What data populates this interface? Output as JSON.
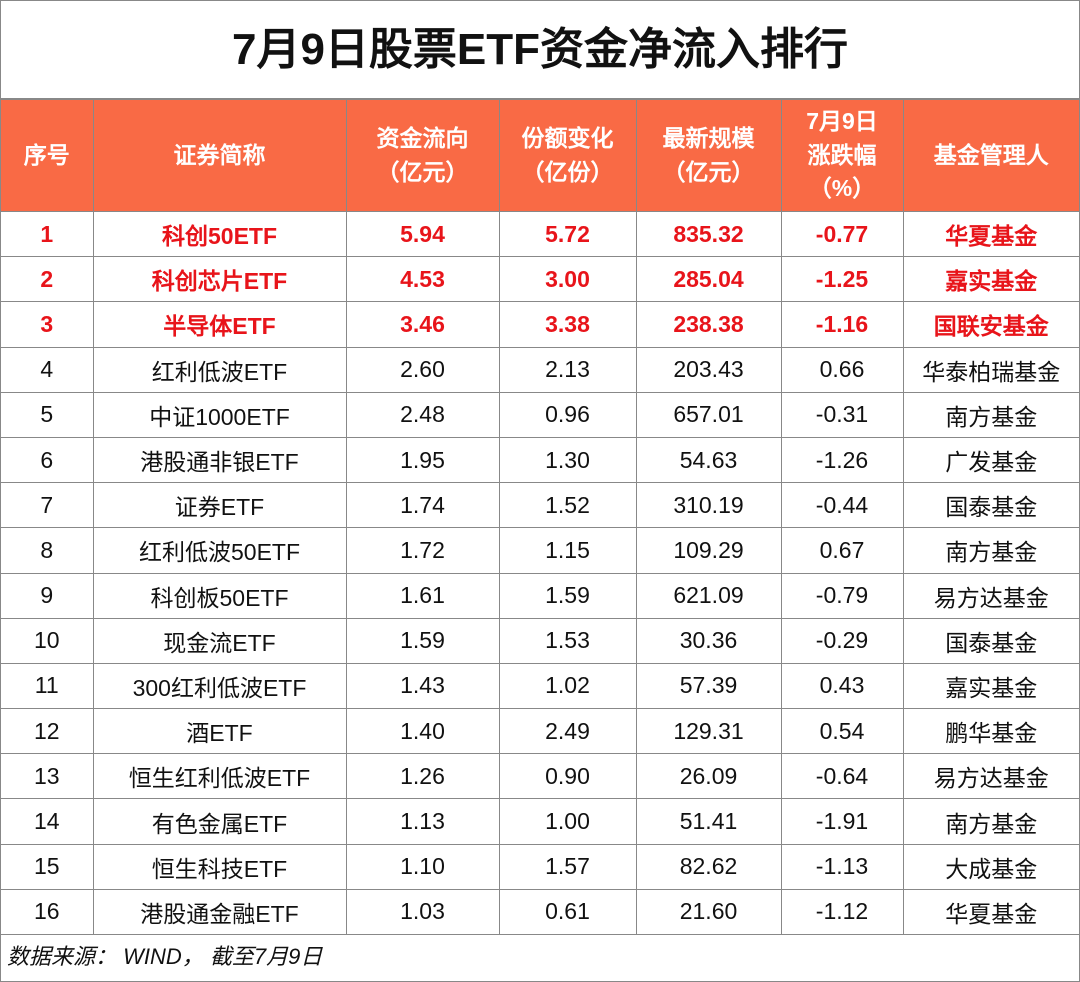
{
  "header": {
    "title": "7月9日股票ETF资金净流入排行"
  },
  "table": {
    "columns": [
      "序号",
      "证券简称",
      "资金流向\n（亿元）",
      "份额变化\n（亿份）",
      "最新规模\n（亿元）",
      "7月9日\n涨跌幅\n（%）",
      "基金管理人"
    ],
    "rows": [
      [
        "1",
        "科创50ETF",
        "5.94",
        "5.72",
        "835.32",
        "-0.77",
        "华夏基金"
      ],
      [
        "2",
        "科创芯片ETF",
        "4.53",
        "3.00",
        "285.04",
        "-1.25",
        "嘉实基金"
      ],
      [
        "3",
        "半导体ETF",
        "3.46",
        "3.38",
        "238.38",
        "-1.16",
        "国联安基金"
      ],
      [
        "4",
        "红利低波ETF",
        "2.60",
        "2.13",
        "203.43",
        "0.66",
        "华泰柏瑞基金"
      ],
      [
        "5",
        "中证1000ETF",
        "2.48",
        "0.96",
        "657.01",
        "-0.31",
        "南方基金"
      ],
      [
        "6",
        "港股通非银ETF",
        "1.95",
        "1.30",
        "54.63",
        "-1.26",
        "广发基金"
      ],
      [
        "7",
        "证券ETF",
        "1.74",
        "1.52",
        "310.19",
        "-0.44",
        "国泰基金"
      ],
      [
        "8",
        "红利低波50ETF",
        "1.72",
        "1.15",
        "109.29",
        "0.67",
        "南方基金"
      ],
      [
        "9",
        "科创板50ETF",
        "1.61",
        "1.59",
        "621.09",
        "-0.79",
        "易方达基金"
      ],
      [
        "10",
        "现金流ETF",
        "1.59",
        "1.53",
        "30.36",
        "-0.29",
        "国泰基金"
      ],
      [
        "11",
        "300红利低波ETF",
        "1.43",
        "1.02",
        "57.39",
        "0.43",
        "嘉实基金"
      ],
      [
        "12",
        "酒ETF",
        "1.40",
        "2.49",
        "129.31",
        "0.54",
        "鹏华基金"
      ],
      [
        "13",
        "恒生红利低波ETF",
        "1.26",
        "0.90",
        "26.09",
        "-0.64",
        "易方达基金"
      ],
      [
        "14",
        "有色金属ETF",
        "1.13",
        "1.00",
        "51.41",
        "-1.91",
        "南方基金"
      ],
      [
        "15",
        "恒生科技ETF",
        "1.10",
        "1.57",
        "82.62",
        "-1.13",
        "大成基金"
      ],
      [
        "16",
        "港股通金融ETF",
        "1.03",
        "0.61",
        "21.60",
        "-1.12",
        "华夏基金"
      ]
    ]
  },
  "footer": {
    "source": "数据来源： WIND， 截至7月9日"
  }
}
